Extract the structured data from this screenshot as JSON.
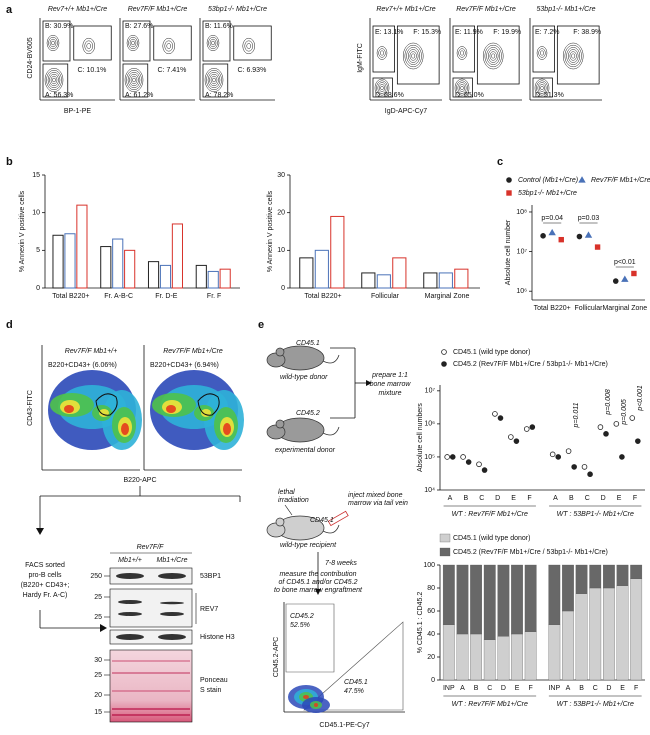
{
  "panel_labels": [
    "a",
    "b",
    "c",
    "d",
    "e"
  ],
  "flow_a": {
    "left": {
      "y_label": "CD24-BV605",
      "x_label": "BP-1-PE",
      "plots": [
        {
          "title": "Rev7+/+ Mb1+/Cre",
          "gates": [
            "B: 30.9%",
            "C: 10.1%",
            "A: 56.3%"
          ]
        },
        {
          "title": "Rev7F/F Mb1+/Cre",
          "gates": [
            "B: 27.6%",
            "C: 7.41%",
            "A: 61.2%"
          ]
        },
        {
          "title": "53bp1-/- Mb1+/Cre",
          "gates": [
            "B: 11.6%",
            "C: 6.93%",
            "A: 78.2%"
          ]
        }
      ]
    },
    "right": {
      "y_label": "IgM-FITC",
      "x_label": "IgD-APC-Cy7",
      "plots": [
        {
          "title": "Rev7+/+ Mb1+/Cre",
          "gates": [
            "E: 13.1%",
            "F: 15.3%",
            "D: 68.6%"
          ]
        },
        {
          "title": "Rev7F/F Mb1+/Cre",
          "gates": [
            "E: 11.9%",
            "F: 19.9%",
            "D: 65.0%"
          ]
        },
        {
          "title": "53bp1-/- Mb1+/Cre",
          "gates": [
            "E: 7.2%",
            "F: 38.9%",
            "D: 51.3%"
          ]
        }
      ]
    }
  },
  "chart_data": [
    {
      "type": "bar",
      "y_label": "% Annexin V positive cells",
      "categories": [
        "Total B220+",
        "Fr. A-B-C",
        "Fr. D-E",
        "Fr. F"
      ],
      "series": [
        {
          "color": "#222222",
          "values": [
            7,
            5.5,
            3.5,
            3
          ]
        },
        {
          "color": "#4a72b8",
          "values": [
            7.2,
            6.5,
            3,
            2.2
          ]
        },
        {
          "color": "#d8322a",
          "values": [
            11,
            5,
            8.5,
            2.5
          ]
        }
      ],
      "ylim": [
        0,
        15
      ],
      "yticks": [
        0,
        5,
        10,
        15
      ]
    },
    {
      "type": "bar",
      "y_label": "% Annexin V positive cells",
      "categories": [
        "Total B220+",
        "Follicular",
        "Marginal Zone"
      ],
      "series": [
        {
          "color": "#222222",
          "values": [
            8,
            4,
            4
          ]
        },
        {
          "color": "#4a72b8",
          "values": [
            10,
            3.5,
            4
          ]
        },
        {
          "color": "#d8322a",
          "values": [
            19,
            8,
            5
          ]
        }
      ],
      "ylim": [
        0,
        30
      ],
      "yticks": [
        0,
        10,
        20,
        30
      ]
    },
    {
      "type": "dot",
      "log_y": true,
      "y_label": "Absolute cell number",
      "categories": [
        "Total B220+",
        "Follicular",
        "Marginal Zone"
      ],
      "series": [
        {
          "name": "Control (Mb1+/Cre)",
          "color": "#222222",
          "marker": "circle",
          "values": [
            25000000,
            24000000,
            1800000
          ]
        },
        {
          "name": "Rev7F/F Mb1+/Cre",
          "color": "#4a72b8",
          "marker": "triangle",
          "values": [
            30000000,
            26000000,
            2000000
          ]
        },
        {
          "name": "53bp1-/- Mb1+/Cre",
          "color": "#d8322a",
          "marker": "square",
          "values": [
            20000000,
            13000000,
            2800000
          ]
        }
      ],
      "ylim": [
        600000,
        150000000
      ],
      "yticks": [
        {
          "value": 1000000,
          "label": "10⁶"
        },
        {
          "value": 10000000,
          "label": "10⁷"
        },
        {
          "value": 100000000,
          "label": "10⁸"
        }
      ],
      "annotations": [
        "p=0.04",
        "p=0.03",
        "p<0.01"
      ]
    },
    {
      "type": "dot",
      "log_y": true,
      "y_label": "Absolute cell numbers",
      "categories": [
        "A",
        "B",
        "C",
        "D",
        "E",
        "F",
        "A",
        "B",
        "C",
        "D",
        "E",
        "F"
      ],
      "group_labels": [
        "WT : Rev7F/F Mb1+/Cre",
        "WT : 53BP1-/- Mb1+/Cre"
      ],
      "series": [
        {
          "name": "CD45.1 (wild type donor)",
          "color": "#222222",
          "marker": "circle",
          "filled": false,
          "values": [
            100000,
            100000,
            60000,
            2000000,
            400000,
            700000,
            120000,
            150000,
            50000,
            800000,
            1000000,
            1500000
          ]
        },
        {
          "name": "CD45.2 (Rev7F/F Mb1+/Cre / 53bp1-/- Mb1+/Cre)",
          "color": "#222222",
          "marker": "circle",
          "filled": true,
          "values": [
            100000,
            70000,
            40000,
            1500000,
            300000,
            800000,
            100000,
            50000,
            30000,
            500000,
            100000,
            300000
          ]
        }
      ],
      "ylim": [
        10000,
        15000000
      ],
      "yticks": [
        {
          "value": 10000,
          "label": "10⁴"
        },
        {
          "value": 100000,
          "label": "10⁵"
        },
        {
          "value": 1000000,
          "label": "10⁶"
        },
        {
          "value": 10000000,
          "label": "10⁷"
        }
      ],
      "annotations": [
        "p=0.011",
        "p=0.008",
        "p=0.005",
        "p<0.001"
      ]
    },
    {
      "type": "stacked_bar",
      "y_label": "% CD45.1 : CD45.2",
      "categories": [
        "INP",
        "A",
        "B",
        "C",
        "D",
        "E",
        "F",
        "INP",
        "A",
        "B",
        "C",
        "D",
        "E",
        "F"
      ],
      "group_labels": [
        "WT : Rev7F/F Mb1+/Cre",
        "WT : 53BP1-/- Mb1+/Cre"
      ],
      "series": [
        {
          "name": "CD45.1 (wild type donor)",
          "color": "#cfcfcf",
          "values": [
            48,
            40,
            40,
            35,
            38,
            40,
            42,
            48,
            60,
            75,
            80,
            80,
            82,
            88
          ]
        },
        {
          "name": "CD45.2 (Rev7F/F Mb1+/Cre / 53bp1-/- Mb1+/Cre)",
          "color": "#686868",
          "values": [
            52,
            60,
            60,
            65,
            62,
            60,
            58,
            52,
            40,
            25,
            20,
            20,
            18,
            12
          ]
        }
      ],
      "ylim": [
        0,
        100
      ],
      "yticks": [
        0,
        20,
        40,
        60,
        80,
        100
      ]
    }
  ],
  "panel_d": {
    "plots": [
      {
        "title": "Rev7F/F Mb1+/+",
        "gate": "B220+CD43+ (6.06%)"
      },
      {
        "title": "Rev7F/F Mb1+/Cre",
        "gate": "B220+CD43+ (6.94%)"
      }
    ],
    "y_label": "CD43-FITC",
    "x_label": "B220-APC",
    "sort_text": [
      "FACS sorted",
      "pro-B cells",
      "(B220+ CD43+;",
      "Hardy Fr. A-C)"
    ],
    "blot": {
      "genotype": "Rev7F/F",
      "lanes": [
        "Mb1+/+",
        "Mb1+/Cre"
      ],
      "markers": [
        "250",
        "25",
        "25",
        "30",
        "25",
        "20",
        "15"
      ],
      "proteins": [
        "53BP1",
        "REV7",
        "Histone H3",
        "Ponceau",
        "S stain"
      ]
    }
  },
  "panel_e": {
    "donor1": [
      "CD45.1",
      "wild-type donor"
    ],
    "prepare": [
      "prepare 1:1",
      "bone marrow",
      "mixture"
    ],
    "donor2": [
      "CD45.2",
      "experimental donor"
    ],
    "irradiation": [
      "lethal",
      "irradiation"
    ],
    "inject": [
      "inject mixed bone",
      "marrow via tail vein"
    ],
    "recipient": [
      "CD45.1",
      "wild-type recipient"
    ],
    "time": "7-8 weeks",
    "measure": [
      "measure the contribution",
      "of CD45.1 and/or CD45.2",
      "to bone marrow engraftment"
    ],
    "flow": {
      "gates": [
        [
          "CD45.2",
          "52.5%"
        ],
        [
          "CD45.1",
          "47.5%"
        ]
      ],
      "y_label": "CD45.2-APC",
      "x_label": "CD45.1-PE-Cy7"
    }
  }
}
